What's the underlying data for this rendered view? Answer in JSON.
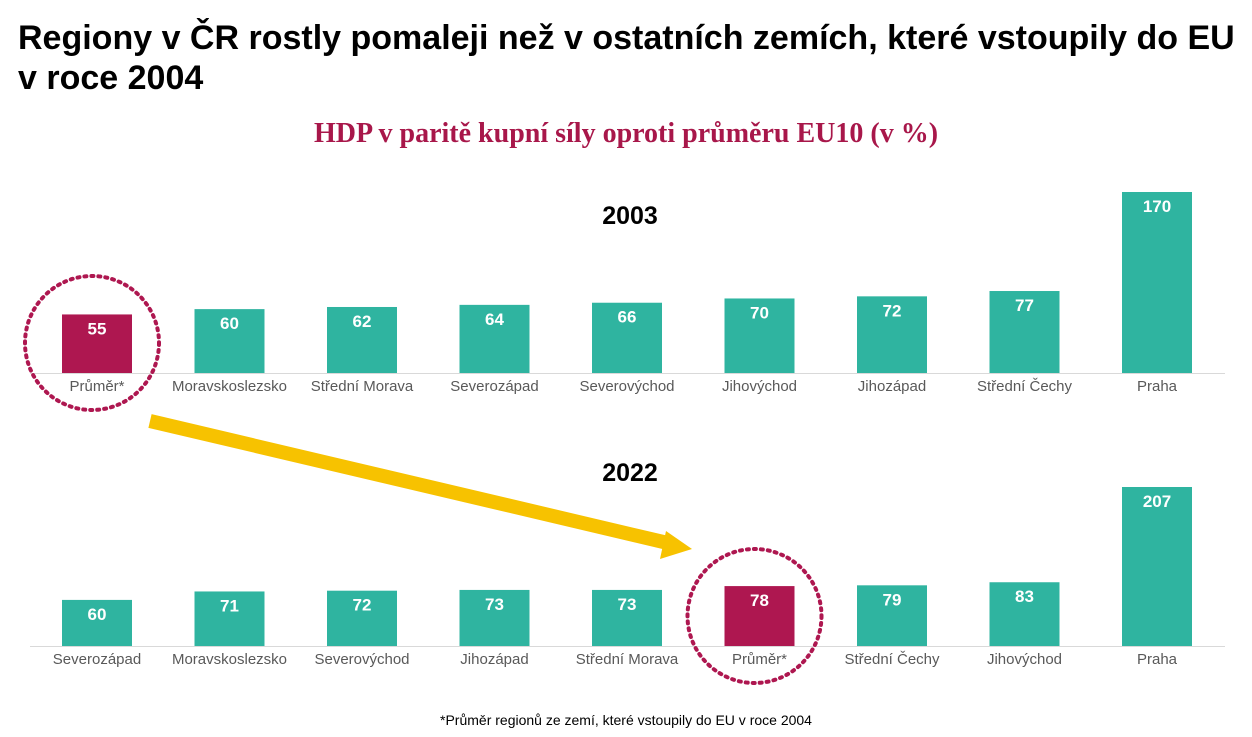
{
  "title": "Regiony v ČR rostly pomaleji než v ostatních zemích, které vstoupily do EU v roce 2004",
  "footnote": "*Průměr regionů ze zemí, které vstoupily do EU v roce 2004",
  "colors": {
    "bar": "#2fb4a0",
    "highlight": "#ae1750",
    "arrow": "#f7c200",
    "subtitle": "#a8174a"
  },
  "chart_data": [
    {
      "type": "bar",
      "title": "HDP v paritě kupní síly oproti průměru EU10 (v %)",
      "panel_label": "2003",
      "categories": [
        "Průměr*",
        "Moravskoslezsko",
        "Střední Morava",
        "Severozápad",
        "Severovýchod",
        "Jihovýchod",
        "Jihozápad",
        "Střední Čechy",
        "Praha"
      ],
      "values": [
        55,
        60,
        62,
        64,
        66,
        70,
        72,
        77,
        170
      ],
      "highlight": "Průměr*",
      "grid": false
    },
    {
      "type": "bar",
      "panel_label": "2022",
      "categories": [
        "Severozápad",
        "Moravskoslezsko",
        "Severovýchod",
        "Jihozápad",
        "Střední Morava",
        "Průměr*",
        "Střední Čechy",
        "Jihovýchod",
        "Praha"
      ],
      "values": [
        60,
        71,
        72,
        73,
        73,
        78,
        79,
        83,
        207
      ],
      "highlight": "Průměr*",
      "grid": false
    }
  ]
}
